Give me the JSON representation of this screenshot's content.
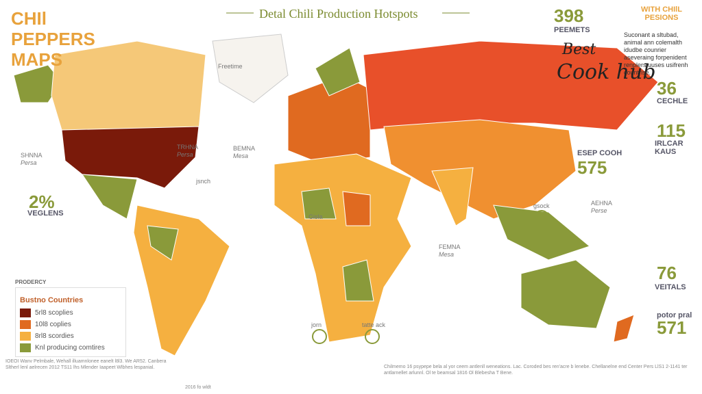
{
  "header": {
    "title": "CHIl PEPPERS MAPS",
    "subtitle": "Detal Chili Production Hotspots"
  },
  "side": {
    "heading": "WITH CHIlL PESIONS",
    "note": "Suconant a sltubad, animal ann colemalth idudbe counrier aseveraing forpenident renplers uuses usifrenh countrise."
  },
  "logo": [
    "Best",
    "Cook hub"
  ],
  "stats": [
    {
      "value": "398",
      "label": "PEEMETS"
    },
    {
      "value": "36",
      "label": "CECHLE"
    },
    {
      "value": "115",
      "label": "IRLCAR KAUS"
    },
    {
      "value": "575",
      "label": "ESEP COOH"
    },
    {
      "value": "2%",
      "label": "VEGLENS"
    },
    {
      "value": "76",
      "label": "VEITALS"
    },
    {
      "value": "571",
      "label": "potor pral"
    }
  ],
  "places": [
    {
      "name": "SHNNA",
      "sub": "Persa"
    },
    {
      "name": "BEMNA",
      "sub": "Mesa"
    },
    {
      "name": "Freetime"
    },
    {
      "name": "TRHNA",
      "sub": "Persa"
    },
    {
      "name": "jsnch"
    },
    {
      "name": "Gisla"
    },
    {
      "name": "FEMNA",
      "sub": "Mesa"
    },
    {
      "name": "AEHNA",
      "sub": "Perse"
    },
    {
      "name": "gsock"
    },
    {
      "name": "jorn"
    },
    {
      "name": "tatte ack"
    }
  ],
  "legend": {
    "caption": "PRODERCY",
    "title": "Bustno Countries",
    "items": [
      {
        "label": "5rl8 scoplies",
        "color": "#7a1a0a"
      },
      {
        "label": "10l8 coplies",
        "color": "#e06a20"
      },
      {
        "label": "8rl8 scordies",
        "color": "#f5b040"
      },
      {
        "label": "Knl producing comtires",
        "color": "#8a9a3a"
      }
    ]
  },
  "footer": {
    "left": "IOEOI Wanv Pelmbale, Wehall illuamnlonee eanelt l8l3. We AR52. Canbera Sltherl lenl aelrecen 2012 TS11 lhs Mlender Iaapeet Wlbhes lespanial.",
    "right": "Chilmemo 16 psypepe bela al yor ceem antlenll weneations. Lac. Coroded bes ren'acre b lenebe. Chellanelne end Center Pers LlS1 2-1141 ter antlarnellet arlunnl. Ol te beamsal 1816 Ol Blebesha T Bene.",
    "credit": "2016 fo wldt"
  }
}
